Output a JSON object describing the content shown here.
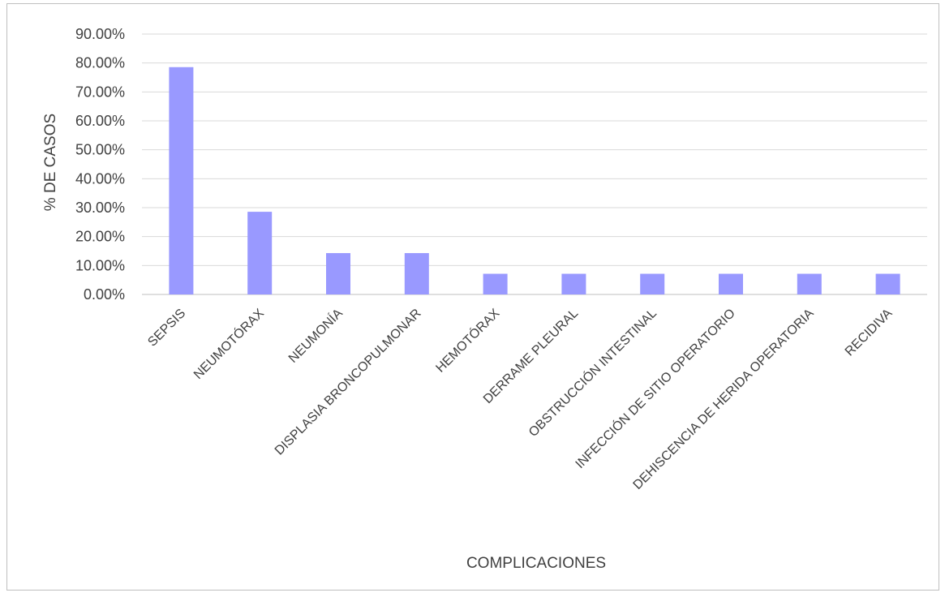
{
  "chart_data": {
    "type": "bar",
    "title": "",
    "xlabel": "COMPLICACIONES",
    "ylabel": "% DE CASOS",
    "ylim": [
      0,
      90
    ],
    "yticks": [
      0,
      10,
      20,
      30,
      40,
      50,
      60,
      70,
      80,
      90
    ],
    "ytick_labels": [
      "0.00%",
      "10.00%",
      "20.00%",
      "30.00%",
      "40.00%",
      "50.00%",
      "60.00%",
      "70.00%",
      "80.00%",
      "90.00%"
    ],
    "categories": [
      "SEPSIS",
      "NEUMOTÓRAX",
      "NEUMONÍA",
      "DISPLASIA BRONCOPULMONAR",
      "HEMOTÓRAX",
      "DERRAME PLEURAL",
      "OBSTRUCCIÓN INTESTINAL",
      "INFECCIÓN DE SITIO OPERATORIO",
      "DEHISCENCIA DE HERIDA OPERATORIA",
      "RECIDIVA"
    ],
    "values": [
      78.57,
      28.57,
      14.29,
      14.29,
      7.14,
      7.14,
      7.14,
      7.14,
      7.14,
      7.14
    ],
    "grid": true,
    "legend": "none",
    "bar_color": "#9999ff"
  }
}
